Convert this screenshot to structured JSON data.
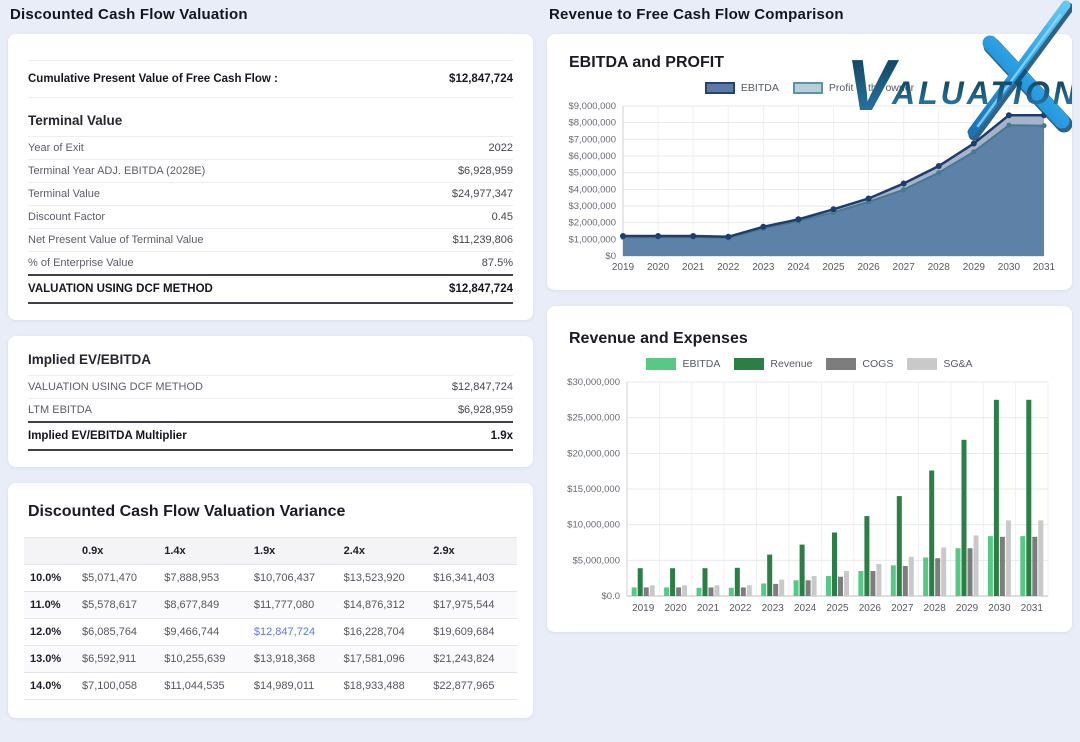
{
  "left": {
    "heading": "Discounted Cash Flow Valuation",
    "summary": {
      "label": "Cumulative Present Value of Free Cash Flow :",
      "value": "$12,847,724"
    },
    "terminal_value": {
      "title": "Terminal Value",
      "rows": [
        {
          "label": "Year of Exit",
          "value": "2022"
        },
        {
          "label": "Terminal Year ADJ. EBITDA (2028E)",
          "value": "$6,928,959"
        },
        {
          "label": "Terminal Value",
          "value": "$24,977,347"
        },
        {
          "label": "Discount Factor",
          "value": "0.45"
        },
        {
          "label": "Net Present Value of Terminal Value",
          "value": "$11,239,806"
        },
        {
          "label": "% of Enterprise Value",
          "value": "87.5%"
        }
      ],
      "total": {
        "label": "VALUATION USING DCF METHOD",
        "value": "$12,847,724"
      }
    },
    "implied": {
      "title": "Implied EV/EBITDA",
      "rows": [
        {
          "label": "VALUATION USING DCF METHOD",
          "value": "$12,847,724"
        },
        {
          "label": "LTM EBITDA",
          "value": "$6,928,959"
        }
      ],
      "total": {
        "label": "Implied EV/EBITDA Multiplier",
        "value": "1.9x"
      }
    },
    "variance": {
      "title": "Discounted Cash Flow Valuation Variance",
      "corner": "",
      "col_headers": [
        "0.9x",
        "1.4x",
        "1.9x",
        "2.4x",
        "2.9x"
      ],
      "rows": [
        {
          "label": "10.0%",
          "values": [
            "$5,071,470",
            "$7,888,953",
            "$10,706,437",
            "$13,523,920",
            "$16,341,403"
          ]
        },
        {
          "label": "11.0%",
          "values": [
            "$5,578,617",
            "$8,677,849",
            "$11,777,080",
            "$14,876,312",
            "$17,975,544"
          ]
        },
        {
          "label": "12.0%",
          "values": [
            "$6,085,764",
            "$9,466,744",
            "$12,847,724",
            "$16,228,704",
            "$19,609,684"
          ],
          "highlight_col": 2
        },
        {
          "label": "13.0%",
          "values": [
            "$6,592,911",
            "$10,255,639",
            "$13,918,368",
            "$17,581,096",
            "$21,243,824"
          ]
        },
        {
          "label": "14.0%",
          "values": [
            "$7,100,058",
            "$11,044,535",
            "$14,989,011",
            "$18,933,488",
            "$22,877,965"
          ]
        }
      ],
      "highlight_color": "#5b79ea"
    }
  },
  "right": {
    "heading": "Revenue to Free Cash Flow Comparison",
    "logo": {
      "name_start": "V",
      "name_rest": "ALUATION",
      "x_mark": "X"
    }
  },
  "chart_data": [
    {
      "type": "area",
      "title": "EBITDA and PROFIT",
      "x": [
        2019,
        2020,
        2021,
        2022,
        2023,
        2024,
        2025,
        2026,
        2027,
        2028,
        2029,
        2030,
        2031
      ],
      "series": [
        {
          "name": "EBITDA",
          "line_color": "#1e3c6e",
          "fill_color": "#a6b3c9",
          "values": [
            1200000,
            1200000,
            1200000,
            1150000,
            1750000,
            2200000,
            2800000,
            3450000,
            4350000,
            5400000,
            6750000,
            8450000,
            8450000
          ],
          "swatch_fill": "#5c7aa8",
          "swatch_border": "#27436f"
        },
        {
          "name": "Profit to the owner",
          "line_color": "#447a90",
          "fill_color": "#5e81a8",
          "values": [
            1130000,
            1130000,
            1130000,
            1080000,
            1650000,
            2100000,
            2620000,
            3250000,
            3980000,
            5000000,
            6250000,
            7850000,
            7820000
          ],
          "swatch_fill": "#b9cfd8",
          "swatch_border": "#5e93a6"
        }
      ],
      "ylim": [
        0,
        9000000
      ],
      "ytick_step": 1000000,
      "zero_label": "$0",
      "grid": true,
      "legend_position": "top-center"
    },
    {
      "type": "bar",
      "title": "Revenue and Expenses",
      "x": [
        2019,
        2020,
        2021,
        2022,
        2023,
        2024,
        2025,
        2026,
        2027,
        2028,
        2029,
        2030,
        2031
      ],
      "series": [
        {
          "name": "EBITDA",
          "color": "#57c985",
          "values": [
            1200000,
            1200000,
            1150000,
            1150000,
            1750000,
            2200000,
            2800000,
            3500000,
            4300000,
            5400000,
            6700000,
            8400000,
            8400000
          ]
        },
        {
          "name": "Revenue",
          "color": "#2a7e46",
          "values": [
            3900000,
            3900000,
            3900000,
            3950000,
            5800000,
            7200000,
            8900000,
            11200000,
            14000000,
            17600000,
            21900000,
            27500000,
            27500000
          ]
        },
        {
          "name": "COGS",
          "color": "#7d7d7d",
          "values": [
            1200000,
            1200000,
            1200000,
            1200000,
            1700000,
            2200000,
            2700000,
            3500000,
            4200000,
            5300000,
            6700000,
            8300000,
            8300000
          ]
        },
        {
          "name": "SG&A",
          "color": "#c9c9c9",
          "values": [
            1500000,
            1500000,
            1500000,
            1500000,
            2300000,
            2800000,
            3500000,
            4500000,
            5500000,
            6800000,
            8500000,
            10600000,
            10600000
          ]
        }
      ],
      "ylim": [
        0,
        30000000
      ],
      "ytick_step": 5000000,
      "zero_label": "$0.0",
      "grid": true,
      "legend_position": "top-center"
    }
  ]
}
